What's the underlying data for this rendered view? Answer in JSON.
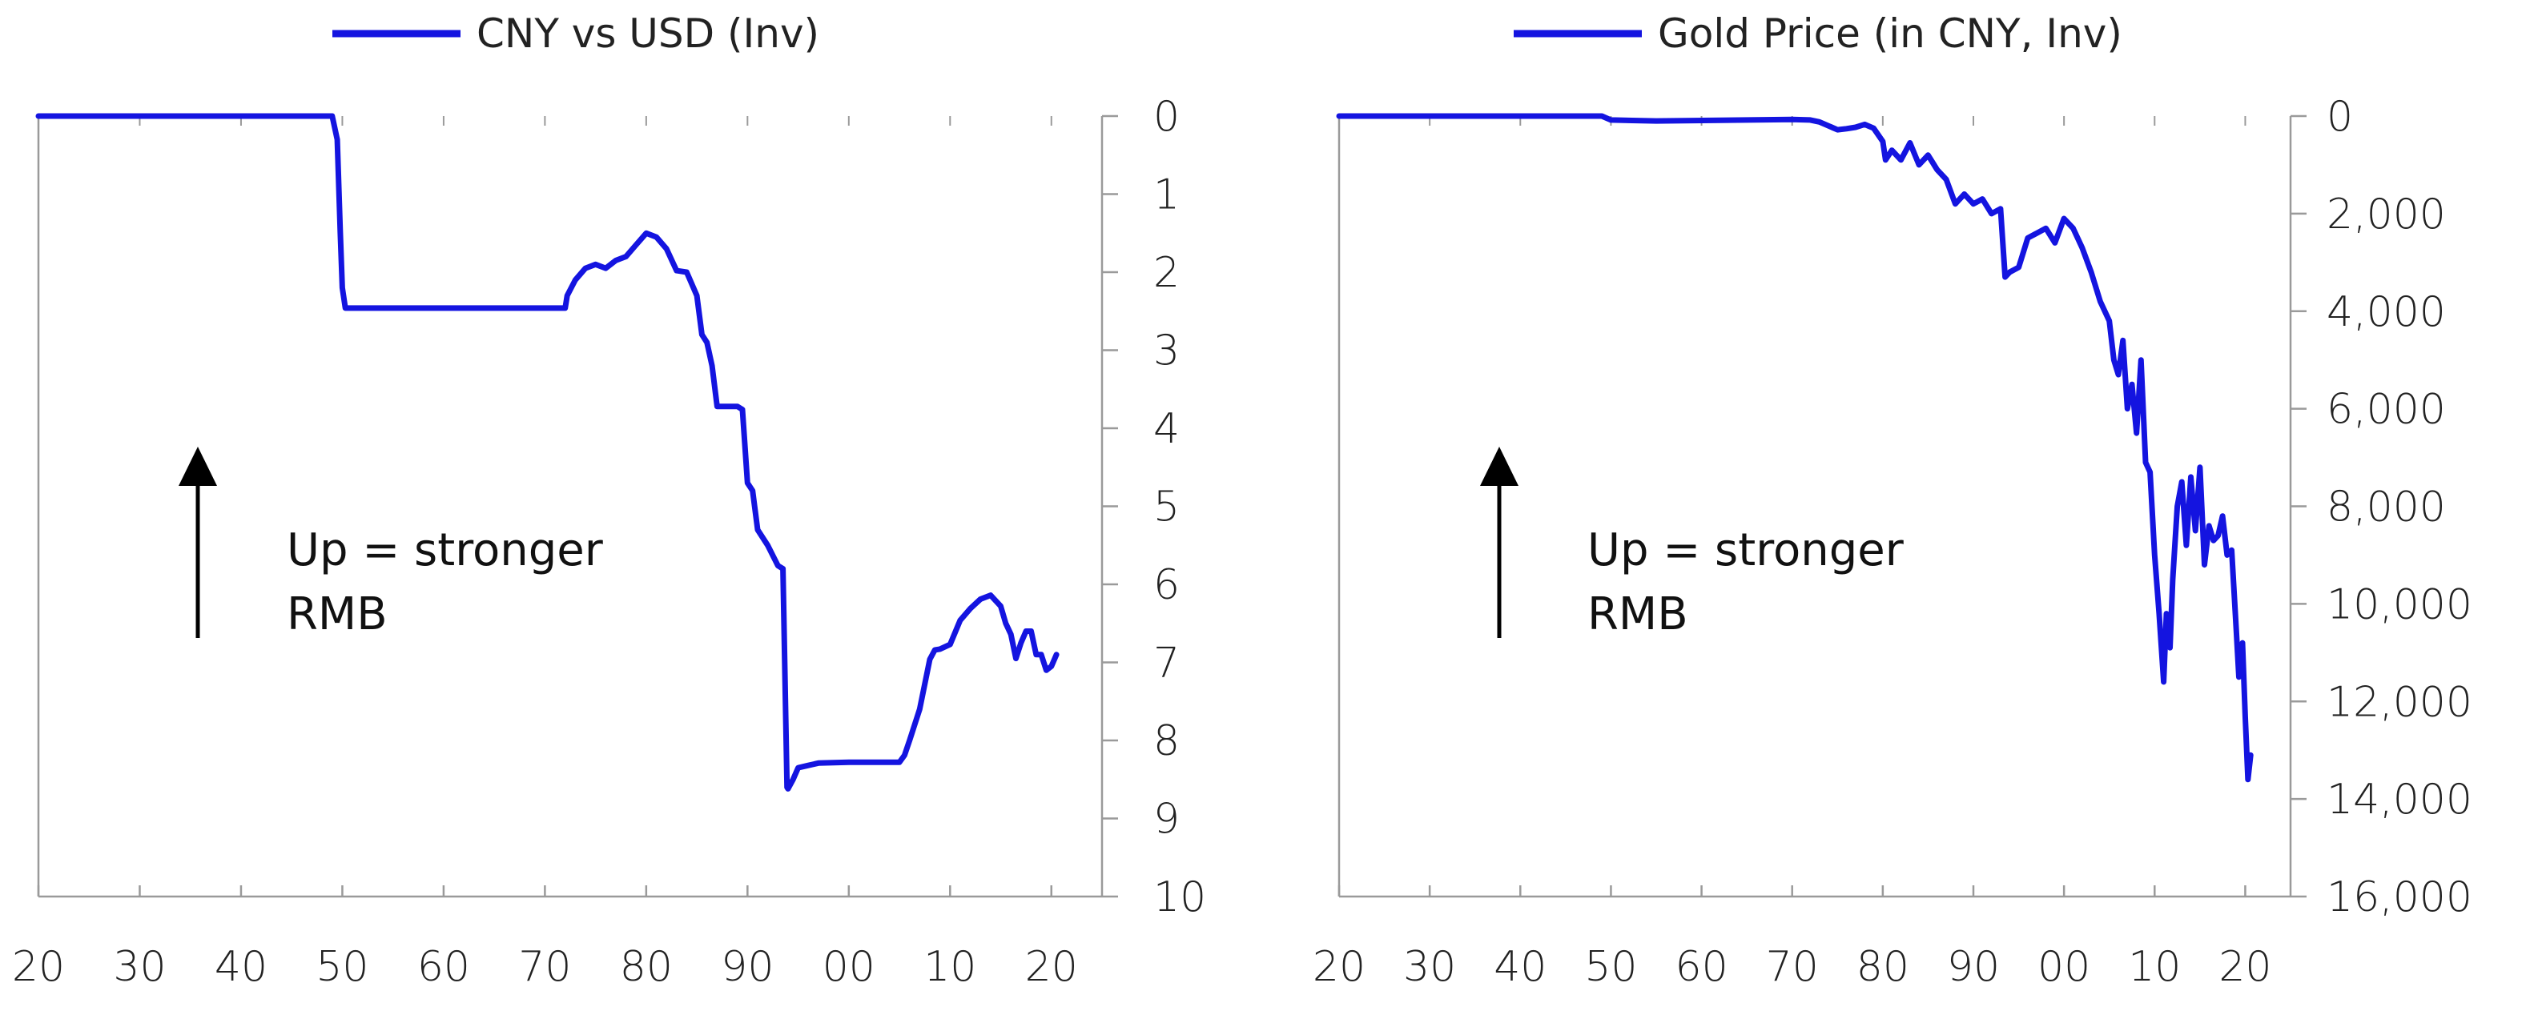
{
  "colors": {
    "series": "#1414e0",
    "axis": "#9a9a9a",
    "text": "#222222",
    "arrow": "#000000"
  },
  "chart_data": [
    {
      "type": "line",
      "legend": "CNY vs USD (Inv)",
      "y_inverted": true,
      "ylim": [
        0,
        10
      ],
      "y_ticks": [
        "0",
        "1",
        "2",
        "3",
        "4",
        "5",
        "6",
        "7",
        "8",
        "9",
        "10"
      ],
      "xlim": [
        1920,
        2025
      ],
      "x_ticks": [
        {
          "year": 1920,
          "label": "20"
        },
        {
          "year": 1930,
          "label": "30"
        },
        {
          "year": 1940,
          "label": "40"
        },
        {
          "year": 1950,
          "label": "50"
        },
        {
          "year": 1960,
          "label": "60"
        },
        {
          "year": 1970,
          "label": "70"
        },
        {
          "year": 1980,
          "label": "80"
        },
        {
          "year": 1990,
          "label": "90"
        },
        {
          "year": 2000,
          "label": "00"
        },
        {
          "year": 2010,
          "label": "10"
        },
        {
          "year": 2020,
          "label": "20"
        }
      ],
      "annotation": [
        "Up = stronger",
        "RMB"
      ],
      "series": [
        {
          "x": [
            1920,
            1949,
            1949.5,
            1949.8,
            1950,
            1950.3,
            1955,
            1972,
            1972.2,
            1973,
            1974,
            1975,
            1976,
            1977,
            1978,
            1979,
            1980,
            1981,
            1982,
            1983,
            1984,
            1985,
            1985.5,
            1986,
            1986.5,
            1987,
            1988,
            1989,
            1989.5,
            1990,
            1990.5,
            1991,
            1992,
            1993,
            1993.5,
            1993.9,
            1994,
            1994.5,
            1995,
            1996,
            1997,
            2000,
            2004,
            2005,
            2005.5,
            2006,
            2007,
            2008,
            2008.5,
            2009,
            2010,
            2011,
            2012,
            2013,
            2014,
            2015,
            2015.5,
            2016,
            2016.5,
            2017,
            2017.5,
            2018,
            2018.5,
            2019,
            2019.5,
            2020,
            2020.5
          ],
          "y": [
            0,
            0,
            0.3,
            1.5,
            2.2,
            2.46,
            2.46,
            2.46,
            2.3,
            2.1,
            1.95,
            1.9,
            1.95,
            1.85,
            1.8,
            1.65,
            1.5,
            1.55,
            1.7,
            1.98,
            2.0,
            2.3,
            2.8,
            2.9,
            3.2,
            3.72,
            3.72,
            3.72,
            3.76,
            4.7,
            4.8,
            5.3,
            5.5,
            5.76,
            5.8,
            8.6,
            8.62,
            8.5,
            8.35,
            8.32,
            8.29,
            8.28,
            8.28,
            8.28,
            8.19,
            8.0,
            7.6,
            6.96,
            6.84,
            6.83,
            6.77,
            6.46,
            6.31,
            6.19,
            6.14,
            6.28,
            6.5,
            6.64,
            6.95,
            6.75,
            6.6,
            6.6,
            6.9,
            6.9,
            7.1,
            7.05,
            6.9
          ]
        }
      ]
    },
    {
      "type": "line",
      "legend": "Gold Price (in CNY, Inv)",
      "y_inverted": true,
      "ylim": [
        0,
        16000
      ],
      "y_ticks": [
        "0",
        "2,000",
        "4,000",
        "6,000",
        "8,000",
        "10,000",
        "12,000",
        "14,000",
        "16,000"
      ],
      "xlim": [
        1920,
        2025
      ],
      "x_ticks": [
        {
          "year": 1920,
          "label": "20"
        },
        {
          "year": 1930,
          "label": "30"
        },
        {
          "year": 1940,
          "label": "40"
        },
        {
          "year": 1950,
          "label": "50"
        },
        {
          "year": 1960,
          "label": "60"
        },
        {
          "year": 1970,
          "label": "70"
        },
        {
          "year": 1980,
          "label": "80"
        },
        {
          "year": 1990,
          "label": "90"
        },
        {
          "year": 2000,
          "label": "00"
        },
        {
          "year": 2010,
          "label": "10"
        },
        {
          "year": 2020,
          "label": "20"
        }
      ],
      "annotation": [
        "Up = stronger",
        "RMB"
      ],
      "series": [
        {
          "x": [
            1920,
            1949,
            1950,
            1955,
            1965,
            1970,
            1972,
            1973,
            1974,
            1975,
            1976,
            1977,
            1978,
            1979,
            1980,
            1980.3,
            1981,
            1982,
            1983,
            1984,
            1985,
            1986,
            1987,
            1988,
            1989,
            1990,
            1991,
            1992,
            1993,
            1993.5,
            1994,
            1995,
            1996,
            1997,
            1998,
            1999,
            2000,
            2001,
            2002,
            2003,
            2004,
            2005,
            2005.5,
            2006,
            2006.5,
            2007,
            2007.5,
            2008,
            2008.5,
            2009,
            2009.5,
            2010,
            2010.5,
            2011,
            2011.3,
            2011.7,
            2012,
            2012.5,
            2013,
            2013.5,
            2014,
            2014.5,
            2015,
            2015.5,
            2016,
            2016.5,
            2017,
            2017.5,
            2018,
            2018.5,
            2019,
            2019.3,
            2019.7,
            2020,
            2020.3,
            2020.6
          ],
          "y": [
            0,
            0,
            80,
            100,
            80,
            70,
            80,
            120,
            200,
            280,
            260,
            230,
            170,
            250,
            520,
            900,
            700,
            900,
            550,
            1000,
            800,
            1100,
            1300,
            1800,
            1600,
            1800,
            1700,
            2000,
            1900,
            3300,
            3200,
            3100,
            2500,
            2400,
            2300,
            2600,
            2100,
            2300,
            2700,
            3200,
            3800,
            4200,
            5000,
            5300,
            4600,
            6000,
            5500,
            6500,
            5000,
            7100,
            7300,
            9000,
            10200,
            11600,
            10200,
            10900,
            9500,
            8000,
            7500,
            8800,
            7400,
            8500,
            7200,
            9200,
            8400,
            8700,
            8600,
            8200,
            9000,
            8900,
            10500,
            11500,
            10800,
            12300,
            13600,
            13100
          ]
        }
      ]
    }
  ]
}
